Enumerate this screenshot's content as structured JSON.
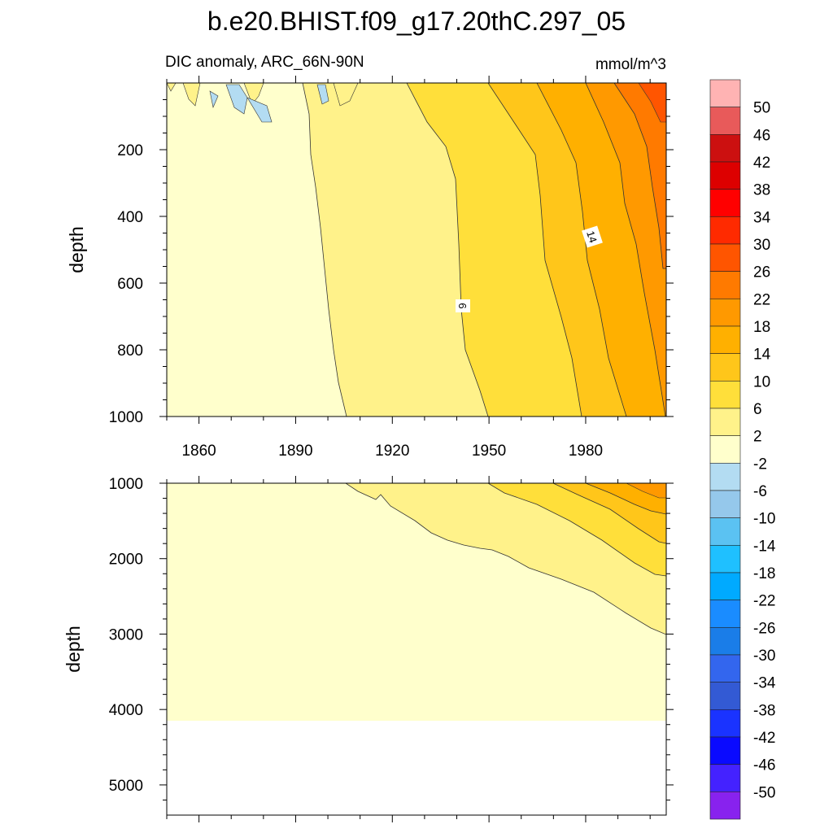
{
  "title": "b.e20.BHIST.f09_g17.20thC.297_05",
  "left_label": "DIC anomaly, ARC_66N-90N",
  "units_label": "mmol/m^3",
  "chart_data": {
    "type": "heatmap",
    "title": "b.e20.BHIST.f09_g17.20thC.297_05",
    "subtitle": "DIC anomaly, ARC_66N-90N",
    "units": "mmol/m^3",
    "x": [
      1850,
      1890,
      1920,
      1950,
      1980,
      2005
    ],
    "xticks": [
      "1860",
      "1890",
      "1920",
      "1950",
      "1980"
    ],
    "contour_labels": [
      "6",
      "14"
    ],
    "panels": [
      {
        "name": "upper",
        "ylabel": "depth",
        "ylim": [
          0,
          1000
        ],
        "yticks": [
          "200",
          "400",
          "600",
          "800",
          "1000"
        ],
        "depth": [
          0,
          250,
          500,
          750,
          1000
        ],
        "values": [
          [
            0,
            1,
            4,
            8,
            14,
            24
          ],
          [
            0,
            1,
            4,
            8,
            13,
            22
          ],
          [
            0,
            0.5,
            3,
            7,
            12,
            20
          ],
          [
            0,
            0.3,
            2.5,
            6,
            11,
            18
          ],
          [
            0,
            0.2,
            2,
            5,
            10,
            16
          ]
        ]
      },
      {
        "name": "lower",
        "ylabel": "depth",
        "ylim": [
          1000,
          5400
        ],
        "yticks": [
          "1000",
          "2000",
          "3000",
          "4000",
          "5000"
        ],
        "depth": [
          1000,
          1500,
          2000,
          2500,
          3000,
          4000
        ],
        "values": [
          [
            0,
            0,
            1,
            3,
            6,
            10
          ],
          [
            0,
            0,
            0.5,
            2,
            4,
            7
          ],
          [
            0,
            0,
            0,
            1,
            3,
            5
          ],
          [
            0,
            0,
            0,
            0.5,
            1.5,
            3
          ],
          [
            0,
            0,
            0,
            0,
            0.5,
            2
          ],
          [
            0,
            0,
            0,
            0,
            0,
            0
          ]
        ]
      }
    ],
    "colorbar": {
      "levels": [
        "50",
        "46",
        "42",
        "38",
        "34",
        "30",
        "26",
        "22",
        "18",
        "14",
        "10",
        "6",
        "2",
        "-2",
        "-6",
        "-10",
        "-14",
        "-18",
        "-22",
        "-26",
        "-30",
        "-34",
        "-38",
        "-42",
        "-46",
        "-50"
      ],
      "colors": [
        "#ffb3b3",
        "#e85a5a",
        "#cc1010",
        "#dd0000",
        "#ff0000",
        "#ff2a00",
        "#ff5500",
        "#ff7a00",
        "#ff9900",
        "#ffb000",
        "#ffc61a",
        "#ffdf3a",
        "#fff28a",
        "#ffffcc",
        "#b3dcf2",
        "#95c8eb",
        "#5bc2f2",
        "#1fc0ff",
        "#00aaff",
        "#1a8cff",
        "#1a7de8",
        "#3366ee",
        "#335ad4",
        "#1a33ff",
        "#0a0aff",
        "#4422ff",
        "#8822ee"
      ]
    }
  }
}
